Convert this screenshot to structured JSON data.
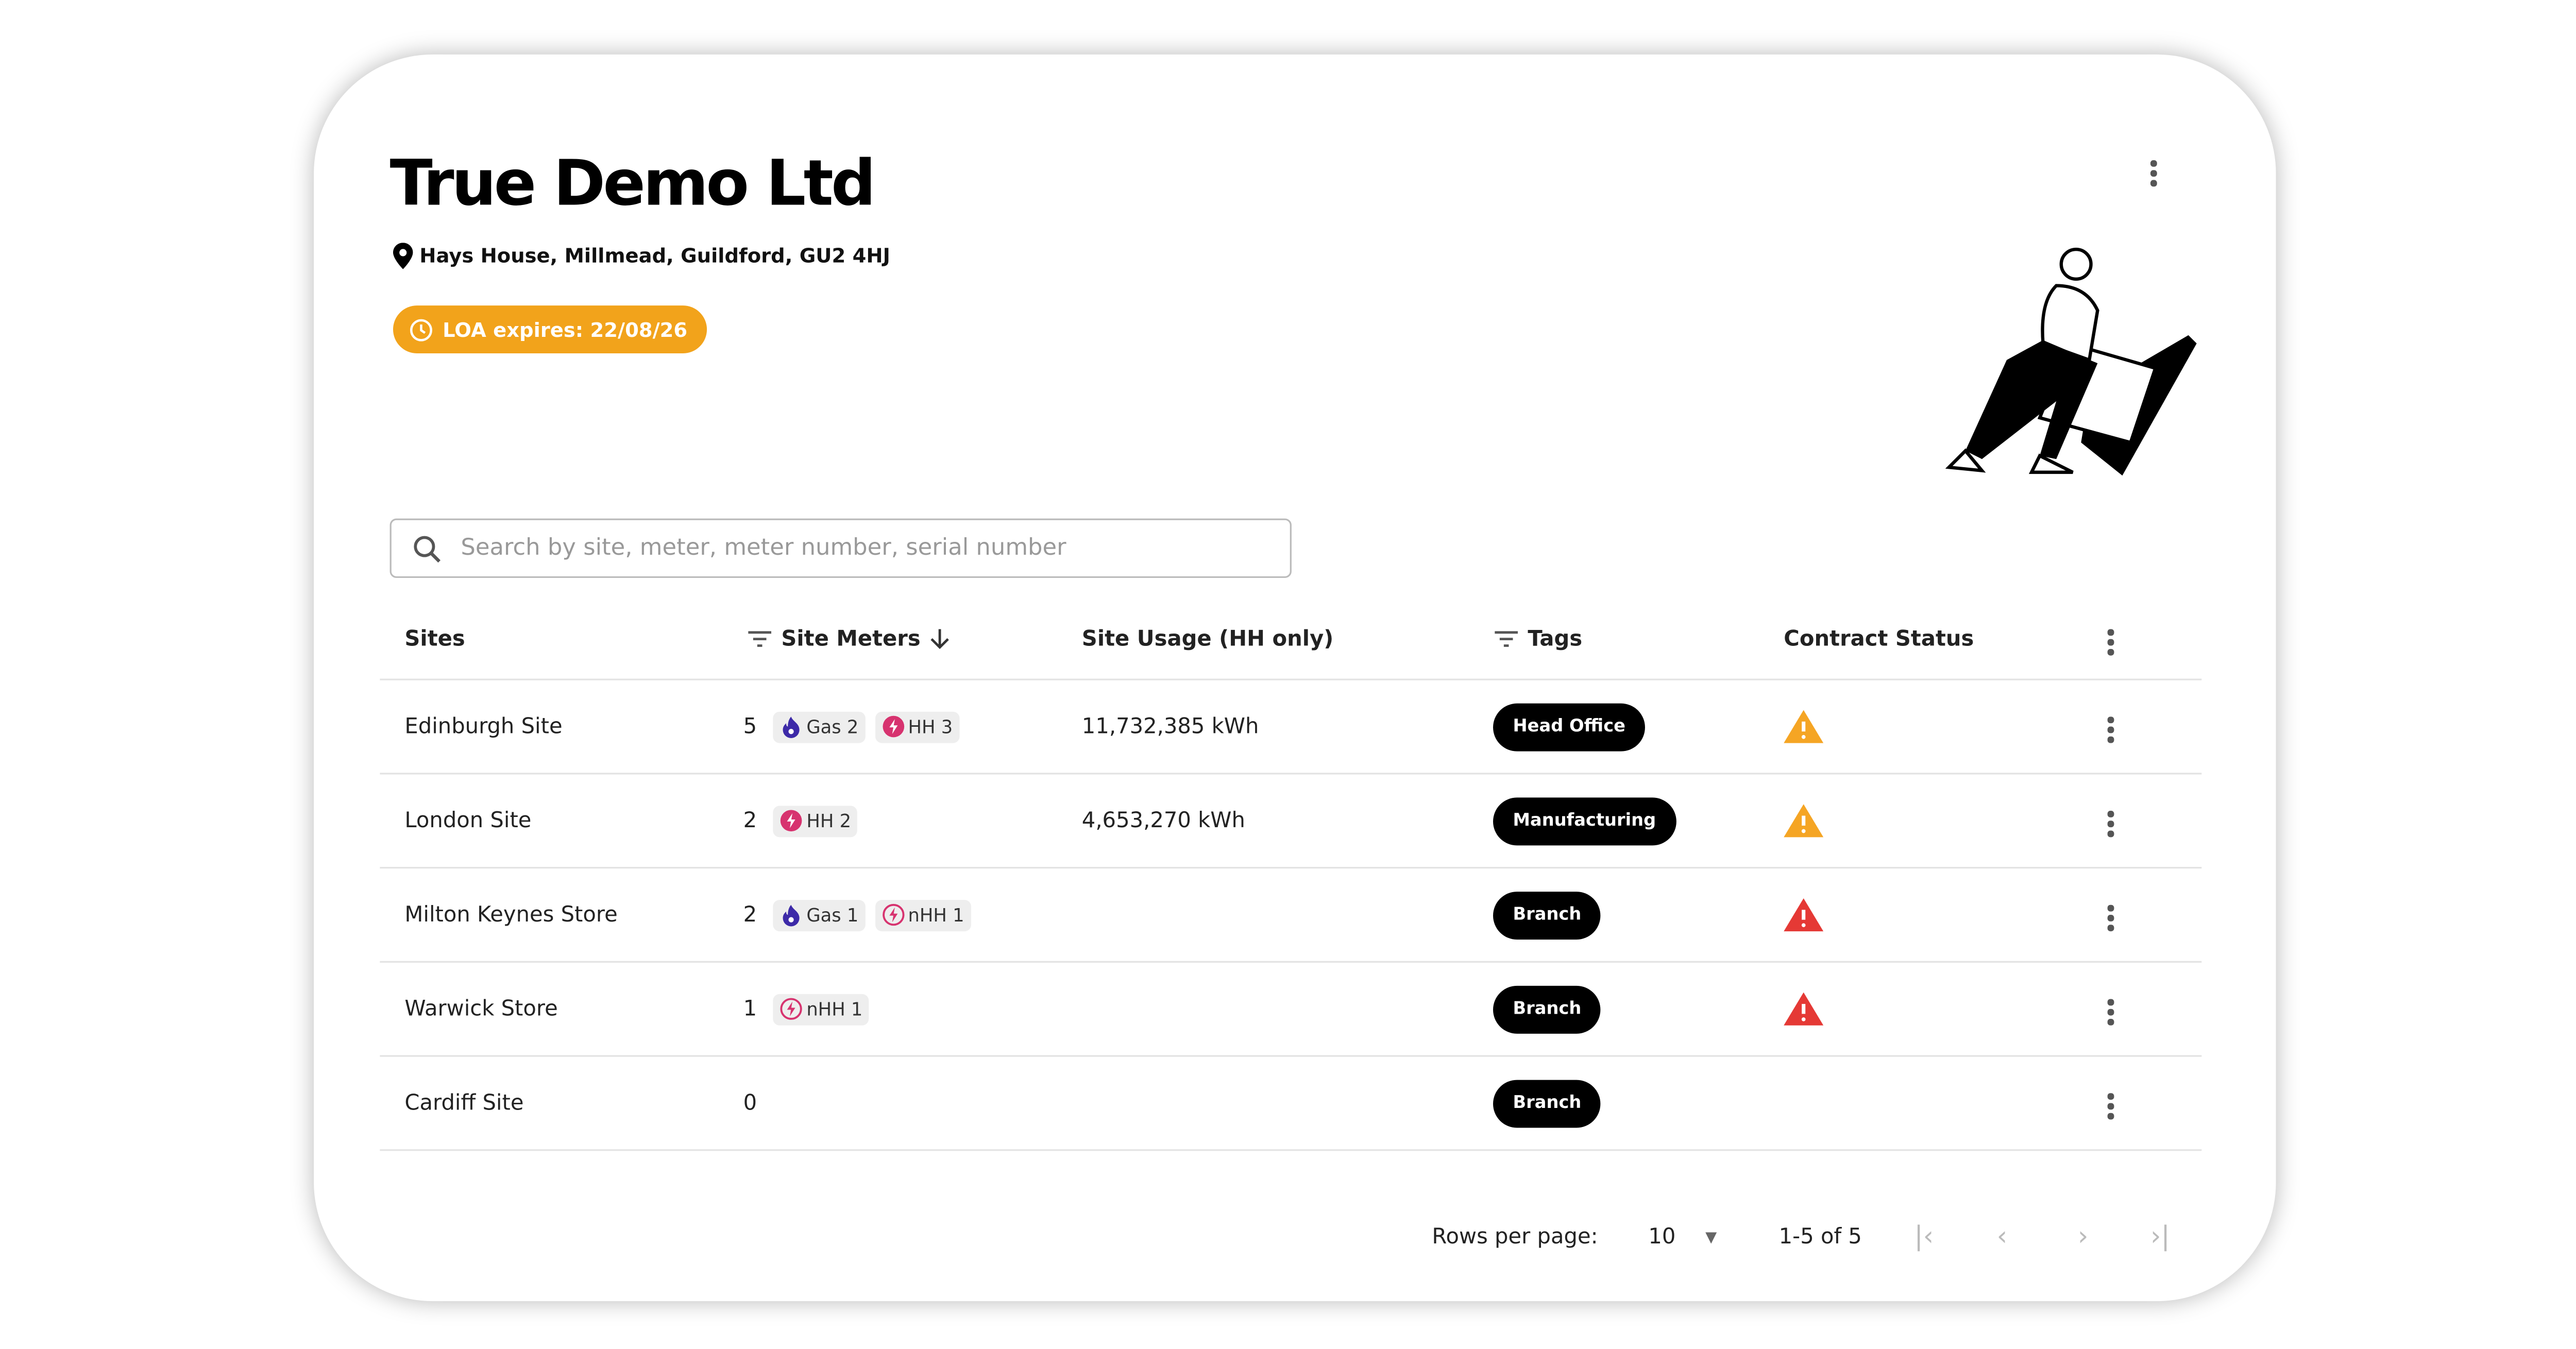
{
  "header": {
    "title": "True Demo Ltd",
    "address": "Hays House, Millmead, Guildford, GU2 4HJ",
    "loa_badge": "LOA expires: 22/08/26",
    "loa_color": "#f2a31b"
  },
  "search": {
    "placeholder": "Search by site, meter, meter number, serial number",
    "value": ""
  },
  "table": {
    "columns": {
      "sites": "Sites",
      "meters": "Site Meters",
      "usage": "Site Usage (HH only)",
      "tags": "Tags",
      "status": "Contract Status"
    },
    "rows": [
      {
        "site": "Edinburgh Site",
        "count": "5",
        "chips": [
          {
            "type": "gas",
            "label": "Gas 2"
          },
          {
            "type": "hh",
            "label": "HH 3"
          }
        ],
        "usage": "11,732,385 kWh",
        "tag": "Head Office",
        "status": "warning-orange"
      },
      {
        "site": "London Site",
        "count": "2",
        "chips": [
          {
            "type": "hh",
            "label": "HH 2"
          }
        ],
        "usage": "4,653,270 kWh",
        "tag": "Manufacturing",
        "status": "warning-orange"
      },
      {
        "site": "Milton Keynes Store",
        "count": "2",
        "chips": [
          {
            "type": "gas",
            "label": "Gas 1"
          },
          {
            "type": "nhh",
            "label": "nHH 1"
          }
        ],
        "usage": "",
        "tag": "Branch",
        "status": "warning-red"
      },
      {
        "site": "Warwick Store",
        "count": "1",
        "chips": [
          {
            "type": "nhh",
            "label": "nHH 1"
          }
        ],
        "usage": "",
        "tag": "Branch",
        "status": "warning-red"
      },
      {
        "site": "Cardiff Site",
        "count": "0",
        "chips": [],
        "usage": "",
        "tag": "Branch",
        "status": ""
      }
    ]
  },
  "pagination": {
    "rows_label": "Rows per page:",
    "rows_value": "10",
    "range": "1-5 of 5"
  },
  "colors": {
    "gas": "#3d2aa8",
    "electric": "#d7336f",
    "warn_orange": "#f5a524",
    "warn_red": "#e53935"
  }
}
